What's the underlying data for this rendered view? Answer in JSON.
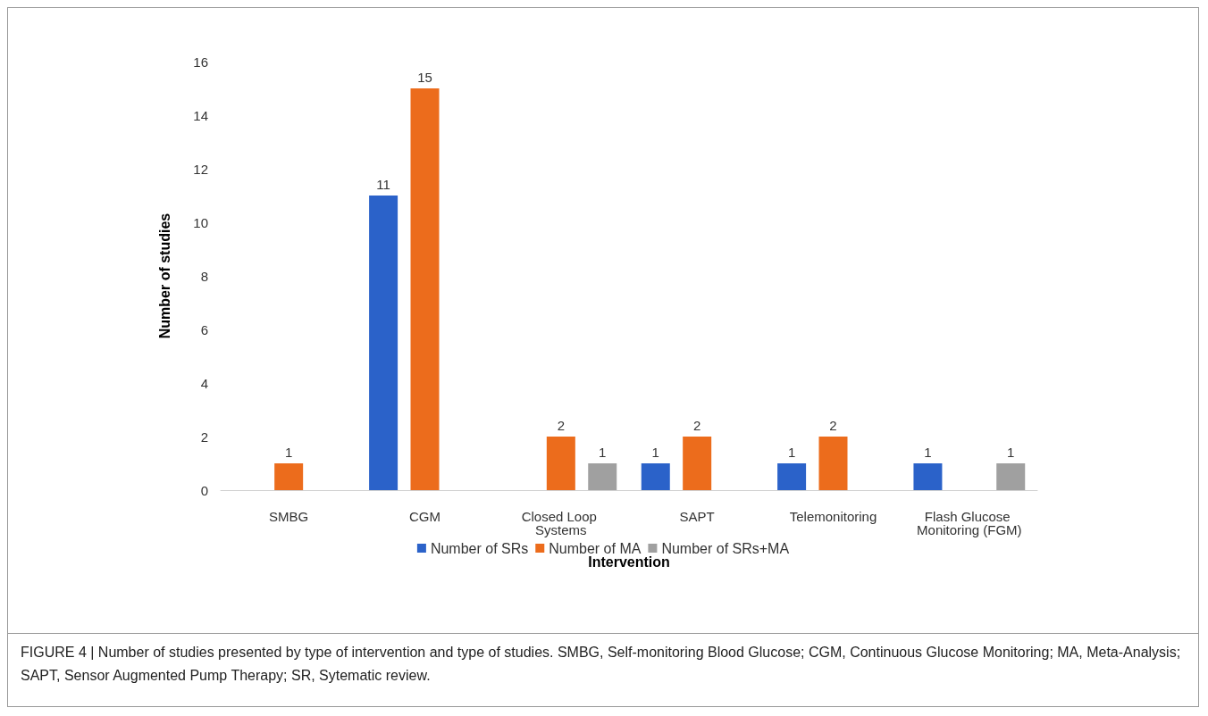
{
  "chart_data": {
    "type": "bar",
    "xlabel": "Intervention",
    "ylabel": "Number of studies",
    "categories": [
      "SMBG",
      "CGM",
      "Closed Loop Systems",
      "SAPT",
      "Telemonitoring",
      "Flash Glucose Monitoring (FGM)"
    ],
    "series": [
      {
        "name": "Number of SRs",
        "color": "#2b62c9",
        "values": [
          null,
          11,
          null,
          1,
          1,
          1
        ]
      },
      {
        "name": "Number of MA",
        "color": "#ec6c1c",
        "values": [
          1,
          15,
          2,
          2,
          2,
          null
        ]
      },
      {
        "name": "Number of SRs+MA",
        "color": "#a0a0a0",
        "values": [
          null,
          null,
          1,
          null,
          null,
          1
        ]
      }
    ],
    "ylim": [
      0,
      16
    ],
    "yticks": [
      0,
      2,
      4,
      6,
      8,
      10,
      12,
      14,
      16
    ],
    "grid": false,
    "legend": "bottom",
    "data_labels": true,
    "annotations": [
      "FIGURE 4 | Number of studies presented by type of intervention and type of studies. SMBG, Self-monitoring Blood Glucose; CGM, Continuous Glucose Monitoring; MA, Meta-Analysis; SAPT, Sensor Augmented Pump Therapy; SR, Sytematic review."
    ]
  }
}
